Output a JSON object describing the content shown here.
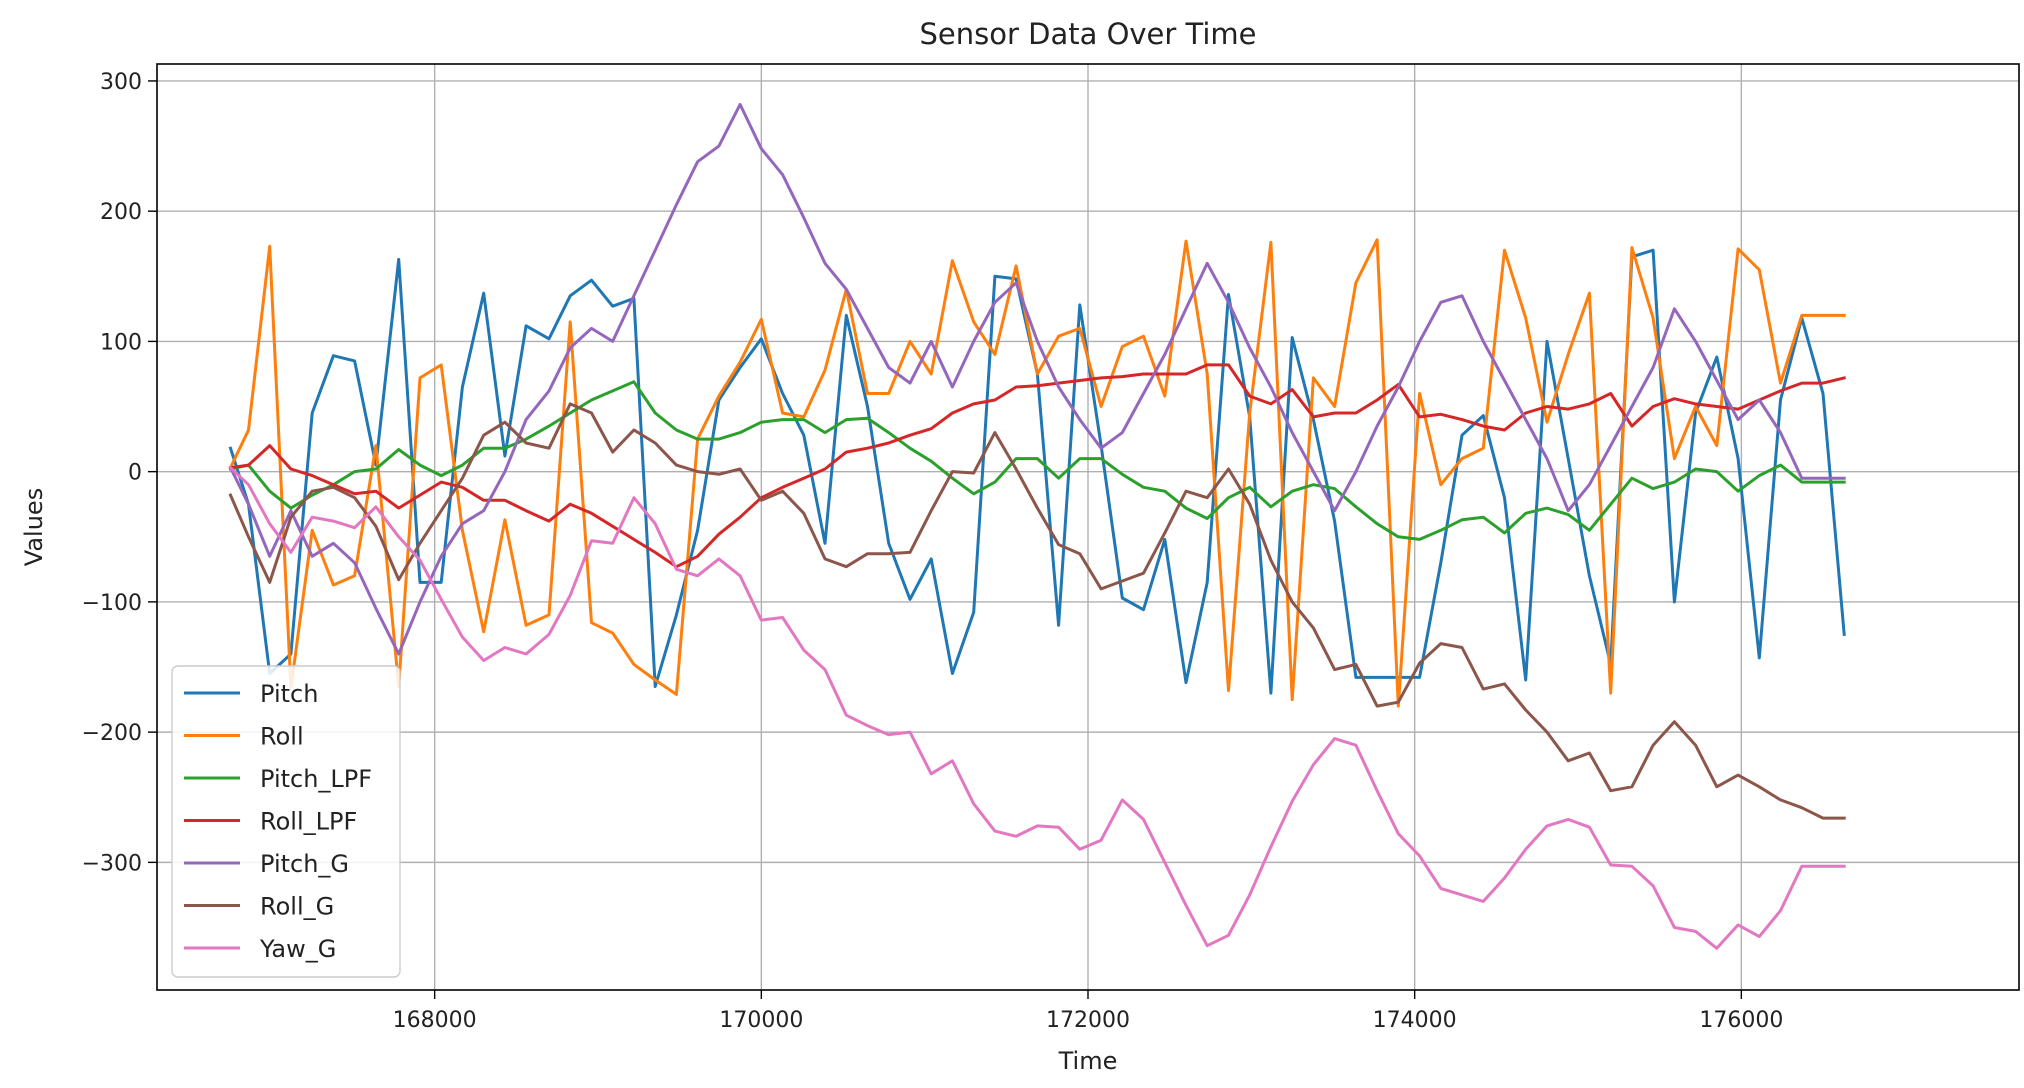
{
  "chart_data": {
    "type": "line",
    "title": "Sensor Data Over Time",
    "xlabel": "Time",
    "ylabel": "Values",
    "xlim": [
      166300,
      177700
    ],
    "ylim": [
      -398,
      313
    ],
    "xticks": [
      168000,
      170000,
      172000,
      174000,
      176000
    ],
    "yticks": [
      -300,
      -200,
      -100,
      0,
      100,
      200,
      300
    ],
    "grid": true,
    "legend_position": "lower-left",
    "x": [
      166750,
      166860,
      166990,
      167120,
      167250,
      167380,
      167510,
      167640,
      167780,
      167910,
      168040,
      168170,
      168300,
      168430,
      168560,
      168700,
      168830,
      168960,
      169090,
      169220,
      169350,
      169480,
      169610,
      169740,
      169870,
      170000,
      170130,
      170260,
      170390,
      170520,
      170650,
      170780,
      170910,
      171040,
      171170,
      171300,
      171430,
      171560,
      171690,
      171820,
      171950,
      172080,
      172210,
      172340,
      172470,
      172600,
      172730,
      172860,
      172990,
      173120,
      173250,
      173380,
      173510,
      173640,
      173770,
      173900,
      174030,
      174160,
      174290,
      174420,
      174550,
      174680,
      174810,
      174940,
      175070,
      175200,
      175330,
      175460,
      175590,
      175720,
      175850,
      175980,
      176110,
      176240,
      176370,
      176500,
      176630
    ],
    "series": [
      {
        "name": "Pitch",
        "color": "#1f77b4",
        "values": [
          18,
          -25,
          -155,
          -140,
          45,
          89,
          85,
          5,
          163,
          -85,
          -85,
          65,
          137,
          12,
          112,
          102,
          135,
          147,
          127,
          133,
          -165,
          -110,
          -45,
          55,
          80,
          102,
          60,
          28,
          -55,
          120,
          50,
          -55,
          -98,
          -67,
          -155,
          -108,
          150,
          148,
          75,
          -118,
          128,
          20,
          -97,
          -106,
          -52,
          -162,
          -85,
          136,
          42,
          -170,
          103,
          40,
          -38,
          -158,
          -158,
          -158,
          -158,
          -70,
          28,
          43,
          -20,
          -160,
          100,
          10,
          -80,
          -148,
          165,
          170,
          -100,
          45,
          88,
          10,
          -143,
          55,
          118,
          60,
          -125
        ]
      },
      {
        "name": "Roll",
        "color": "#ff7f0e",
        "values": [
          3,
          32,
          173,
          -166,
          -45,
          -87,
          -80,
          20,
          -165,
          72,
          82,
          -45,
          -123,
          -37,
          -118,
          -110,
          115,
          -116,
          -124,
          -148,
          -160,
          -171,
          25,
          58,
          84,
          117,
          45,
          42,
          78,
          140,
          60,
          60,
          100,
          75,
          162,
          115,
          90,
          158,
          75,
          104,
          110,
          50,
          96,
          104,
          58,
          177,
          75,
          -168,
          45,
          176,
          -175,
          72,
          50,
          145,
          178,
          -180,
          60,
          -10,
          10,
          18,
          170,
          118,
          38,
          90,
          137,
          -170,
          172,
          118,
          10,
          50,
          20,
          171,
          155,
          68,
          120,
          120,
          120
        ]
      },
      {
        "name": "Pitch_LPF",
        "color": "#2ca02c",
        "values": [
          2,
          5,
          -15,
          -28,
          -18,
          -10,
          0,
          2,
          17,
          5,
          -3,
          5,
          18,
          18,
          25,
          35,
          45,
          55,
          62,
          69,
          45,
          32,
          25,
          25,
          30,
          38,
          40,
          40,
          30,
          40,
          41,
          30,
          18,
          8,
          -5,
          -17,
          -8,
          10,
          10,
          -5,
          10,
          10,
          -2,
          -12,
          -15,
          -28,
          -36,
          -20,
          -12,
          -27,
          -15,
          -10,
          -13,
          -27,
          -40,
          -50,
          -52,
          -45,
          -37,
          -35,
          -47,
          -32,
          -28,
          -33,
          -45,
          -25,
          -5,
          -13,
          -8,
          2,
          0,
          -15,
          -3,
          5,
          -8,
          -8,
          -8
        ]
      },
      {
        "name": "Roll_LPF",
        "color": "#d62728",
        "values": [
          3,
          5,
          20,
          2,
          -3,
          -10,
          -17,
          -15,
          -28,
          -18,
          -8,
          -12,
          -22,
          -22,
          -30,
          -38,
          -25,
          -32,
          -42,
          -52,
          -62,
          -73,
          -65,
          -48,
          -35,
          -20,
          -12,
          -5,
          2,
          15,
          18,
          22,
          28,
          33,
          45,
          52,
          55,
          65,
          66,
          68,
          70,
          72,
          73,
          75,
          75,
          75,
          82,
          82,
          58,
          52,
          63,
          42,
          45,
          45,
          55,
          67,
          42,
          44,
          40,
          35,
          32,
          45,
          50,
          48,
          52,
          60,
          35,
          50,
          56,
          52,
          50,
          48,
          55,
          62,
          68,
          68,
          72
        ]
      },
      {
        "name": "Pitch_G",
        "color": "#9467bd",
        "values": [
          3,
          -25,
          -65,
          -30,
          -65,
          -55,
          -70,
          -105,
          -140,
          -100,
          -65,
          -40,
          -30,
          0,
          40,
          62,
          95,
          110,
          100,
          135,
          170,
          205,
          238,
          250,
          282,
          248,
          228,
          195,
          160,
          140,
          110,
          80,
          68,
          100,
          65,
          100,
          130,
          145,
          100,
          65,
          40,
          18,
          30,
          60,
          90,
          125,
          160,
          130,
          95,
          65,
          30,
          0,
          -30,
          0,
          35,
          65,
          100,
          130,
          135,
          100,
          70,
          40,
          10,
          -30,
          -10,
          20,
          50,
          80,
          125,
          100,
          70,
          40,
          55,
          30,
          -5,
          -5,
          -5
        ]
      },
      {
        "name": "Roll_G",
        "color": "#8c564b",
        "values": [
          -18,
          -50,
          -85,
          -35,
          -15,
          -12,
          -20,
          -42,
          -83,
          -55,
          -30,
          -5,
          28,
          38,
          22,
          18,
          52,
          45,
          15,
          32,
          22,
          5,
          0,
          -2,
          2,
          -22,
          -15,
          -32,
          -67,
          -73,
          -63,
          -63,
          -62,
          -30,
          0,
          -1,
          30,
          2,
          -28,
          -56,
          -63,
          -90,
          -84,
          -78,
          -47,
          -15,
          -20,
          2,
          -25,
          -68,
          -100,
          -120,
          -152,
          -148,
          -180,
          -177,
          -147,
          -132,
          -135,
          -167,
          -163,
          -183,
          -200,
          -222,
          -216,
          -245,
          -242,
          -210,
          -192,
          -210,
          -242,
          -233,
          -242,
          -252,
          -258,
          -266,
          -266
        ]
      },
      {
        "name": "Yaw_G",
        "color": "#e377c2",
        "values": [
          3,
          -10,
          -40,
          -62,
          -35,
          -38,
          -43,
          -27,
          -50,
          -68,
          -98,
          -127,
          -145,
          -135,
          -140,
          -125,
          -95,
          -53,
          -55,
          -20,
          -40,
          -75,
          -80,
          -67,
          -80,
          -114,
          -112,
          -137,
          -152,
          -187,
          -195,
          -202,
          -200,
          -232,
          -222,
          -255,
          -276,
          -280,
          -272,
          -273,
          -290,
          -283,
          -252,
          -267,
          -300,
          -333,
          -364,
          -356,
          -325,
          -288,
          -253,
          -225,
          -205,
          -210,
          -245,
          -278,
          -295,
          -320,
          -325,
          -330,
          -312,
          -290,
          -272,
          -267,
          -273,
          -302,
          -303,
          -318,
          -350,
          -353,
          -366,
          -348,
          -357,
          -337,
          -303,
          -303,
          -303
        ]
      }
    ]
  }
}
